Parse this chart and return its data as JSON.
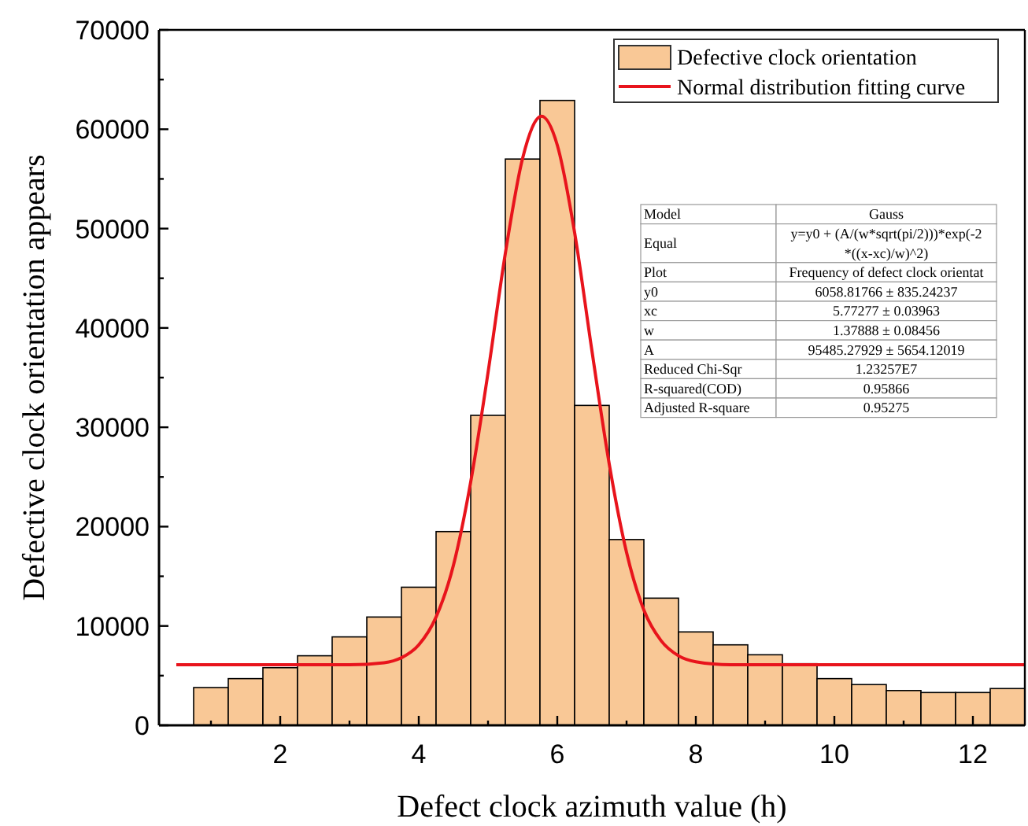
{
  "chart_data": {
    "type": "histogram",
    "xlabel": "Defect clock azimuth value (h)",
    "ylabel": "Defective clock orientation appears",
    "bins": [
      0.75,
      1.25,
      1.75,
      2.25,
      2.75,
      3.25,
      3.75,
      4.25,
      4.75,
      5.25,
      5.75,
      6.25,
      6.75,
      7.25,
      7.75,
      8.25,
      8.75,
      9.25,
      9.75,
      10.25,
      10.75,
      11.25,
      11.75,
      12.25,
      12.75
    ],
    "series": [
      {
        "name": "Defective clock orientation",
        "color": "#f9c896",
        "values": [
          3800,
          4700,
          5800,
          7000,
          8900,
          10900,
          13900,
          19500,
          31200,
          57000,
          62900,
          32200,
          18700,
          12800,
          9400,
          8100,
          7100,
          6200,
          4700,
          4100,
          3500,
          3300,
          3300,
          3700
        ]
      },
      {
        "type": "line",
        "name": "Normal distribution fitting curve",
        "color": "#e8141c",
        "x": [
          0.5,
          2,
          3,
          3.5,
          3.75,
          4,
          4.25,
          4.5,
          4.75,
          5,
          5.25,
          5.5,
          5.773,
          6,
          6.25,
          6.5,
          6.75,
          7,
          7.25,
          7.5,
          7.75,
          8,
          8.5,
          10,
          12.75
        ],
        "values": [
          6100,
          6100,
          6100,
          6300,
          6800,
          8100,
          10900,
          16100,
          24500,
          35500,
          47500,
          57100,
          61300,
          58400,
          49600,
          37700,
          26300,
          17400,
          11600,
          8500,
          7000,
          6400,
          6100,
          6100,
          6100
        ]
      }
    ],
    "xlim": [
      0.25,
      12.75
    ],
    "xticks": [
      {
        "value": 1,
        "label": null
      },
      2,
      {
        "value": 3,
        "label": null
      },
      4,
      {
        "value": 5,
        "label": null
      },
      6,
      {
        "value": 7,
        "label": null
      },
      8,
      {
        "value": 9,
        "label": null
      },
      10,
      {
        "value": 11,
        "label": null
      },
      12
    ],
    "ylim": [
      0,
      70000
    ],
    "yticks": [
      0,
      {
        "value": 5000,
        "label": null
      },
      10000,
      {
        "value": 15000,
        "label": null
      },
      20000,
      {
        "value": 25000,
        "label": null
      },
      30000,
      {
        "value": 35000,
        "label": null
      },
      40000,
      {
        "value": 45000,
        "label": null
      },
      50000,
      {
        "value": 55000,
        "label": null
      },
      60000,
      {
        "value": 65000,
        "label": null
      },
      70000
    ],
    "legend": "top right",
    "grid": false,
    "annotations": [
      "Model",
      "Gauss",
      "Equal",
      "y=y0 + (A/(w*sqrt(pi/2)))*exp(-2*((x-xc)/w)^2)",
      "Plot",
      "Frequency of defect clock orientat",
      "y0",
      "6058.81766 ± 835.24237",
      "xc",
      "5.77277 ± 0.03963",
      "w",
      "1.37888 ± 0.08456",
      "A",
      "95485.27929 ± 5654.12019",
      "Reduced Chi-Sqr",
      "1.23257E7",
      "R-squared(COD)",
      "0.95866",
      "Adjusted R-square",
      "0.95275"
    ]
  }
}
